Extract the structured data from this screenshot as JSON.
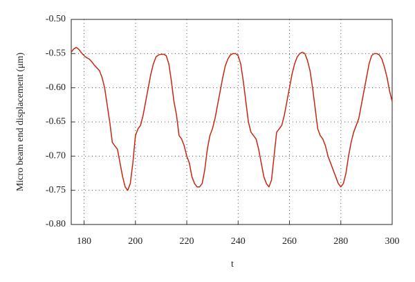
{
  "chart_data": {
    "type": "line",
    "xlabel": "t",
    "ylabel": "Micro beam end displacement (μm)",
    "x": [
      175,
      176,
      177,
      178,
      179,
      180,
      181,
      182,
      183,
      184,
      185,
      186,
      187,
      188,
      189,
      190,
      191,
      192,
      193,
      194,
      195,
      196,
      197,
      198,
      199,
      200,
      201,
      202,
      203,
      204,
      205,
      206,
      207,
      208,
      209,
      210,
      211,
      212,
      213,
      214,
      215,
      216,
      217,
      218,
      219,
      220,
      221,
      222,
      223,
      224,
      225,
      226,
      227,
      228,
      229,
      230,
      231,
      232,
      233,
      234,
      235,
      236,
      237,
      238,
      239,
      240,
      241,
      242,
      243,
      244,
      245,
      246,
      247,
      248,
      249,
      250,
      251,
      252,
      253,
      254,
      255,
      256,
      257,
      258,
      259,
      260,
      261,
      262,
      263,
      264,
      265,
      266,
      267,
      268,
      269,
      270,
      271,
      272,
      273,
      274,
      275,
      276,
      277,
      278,
      279,
      280,
      281,
      282,
      283,
      284,
      285,
      286,
      287,
      288,
      289,
      290,
      291,
      292,
      293,
      294,
      295,
      296,
      297,
      298,
      299,
      300
    ],
    "series": [
      {
        "color": "#c8250f",
        "values": [
          -0.548,
          -0.543,
          -0.541,
          -0.544,
          -0.549,
          -0.553,
          -0.556,
          -0.558,
          -0.562,
          -0.567,
          -0.571,
          -0.575,
          -0.585,
          -0.6,
          -0.625,
          -0.65,
          -0.68,
          -0.685,
          -0.69,
          -0.71,
          -0.73,
          -0.745,
          -0.75,
          -0.74,
          -0.71,
          -0.67,
          -0.66,
          -0.655,
          -0.64,
          -0.62,
          -0.6,
          -0.58,
          -0.565,
          -0.555,
          -0.552,
          -0.551,
          -0.551,
          -0.553,
          -0.565,
          -0.59,
          -0.62,
          -0.64,
          -0.67,
          -0.675,
          -0.685,
          -0.7,
          -0.71,
          -0.73,
          -0.74,
          -0.745,
          -0.745,
          -0.74,
          -0.72,
          -0.69,
          -0.67,
          -0.66,
          -0.645,
          -0.625,
          -0.605,
          -0.585,
          -0.568,
          -0.558,
          -0.552,
          -0.55,
          -0.55,
          -0.553,
          -0.565,
          -0.59,
          -0.62,
          -0.65,
          -0.665,
          -0.67,
          -0.675,
          -0.69,
          -0.71,
          -0.73,
          -0.74,
          -0.745,
          -0.735,
          -0.7,
          -0.665,
          -0.66,
          -0.655,
          -0.64,
          -0.62,
          -0.6,
          -0.58,
          -0.565,
          -0.555,
          -0.55,
          -0.548,
          -0.55,
          -0.56,
          -0.575,
          -0.6,
          -0.63,
          -0.66,
          -0.67,
          -0.675,
          -0.685,
          -0.7,
          -0.71,
          -0.72,
          -0.73,
          -0.74,
          -0.745,
          -0.74,
          -0.725,
          -0.7,
          -0.68,
          -0.665,
          -0.655,
          -0.645,
          -0.625,
          -0.605,
          -0.585,
          -0.565,
          -0.553,
          -0.55,
          -0.55,
          -0.552,
          -0.558,
          -0.57,
          -0.585,
          -0.605,
          -0.62
        ]
      }
    ],
    "xlim": [
      175,
      300
    ],
    "xticks": [
      180,
      200,
      220,
      240,
      260,
      280,
      300
    ],
    "ylim": [
      -0.8,
      -0.5
    ],
    "yticks": [
      {
        "value": -0.8,
        "label": "-0.80"
      },
      -0.75,
      {
        "value": -0.7,
        "label": "-0.70"
      },
      -0.65,
      {
        "value": -0.6,
        "label": "-0.60"
      },
      -0.55,
      {
        "value": -0.5,
        "label": "-0.50"
      }
    ],
    "grid": true
  }
}
